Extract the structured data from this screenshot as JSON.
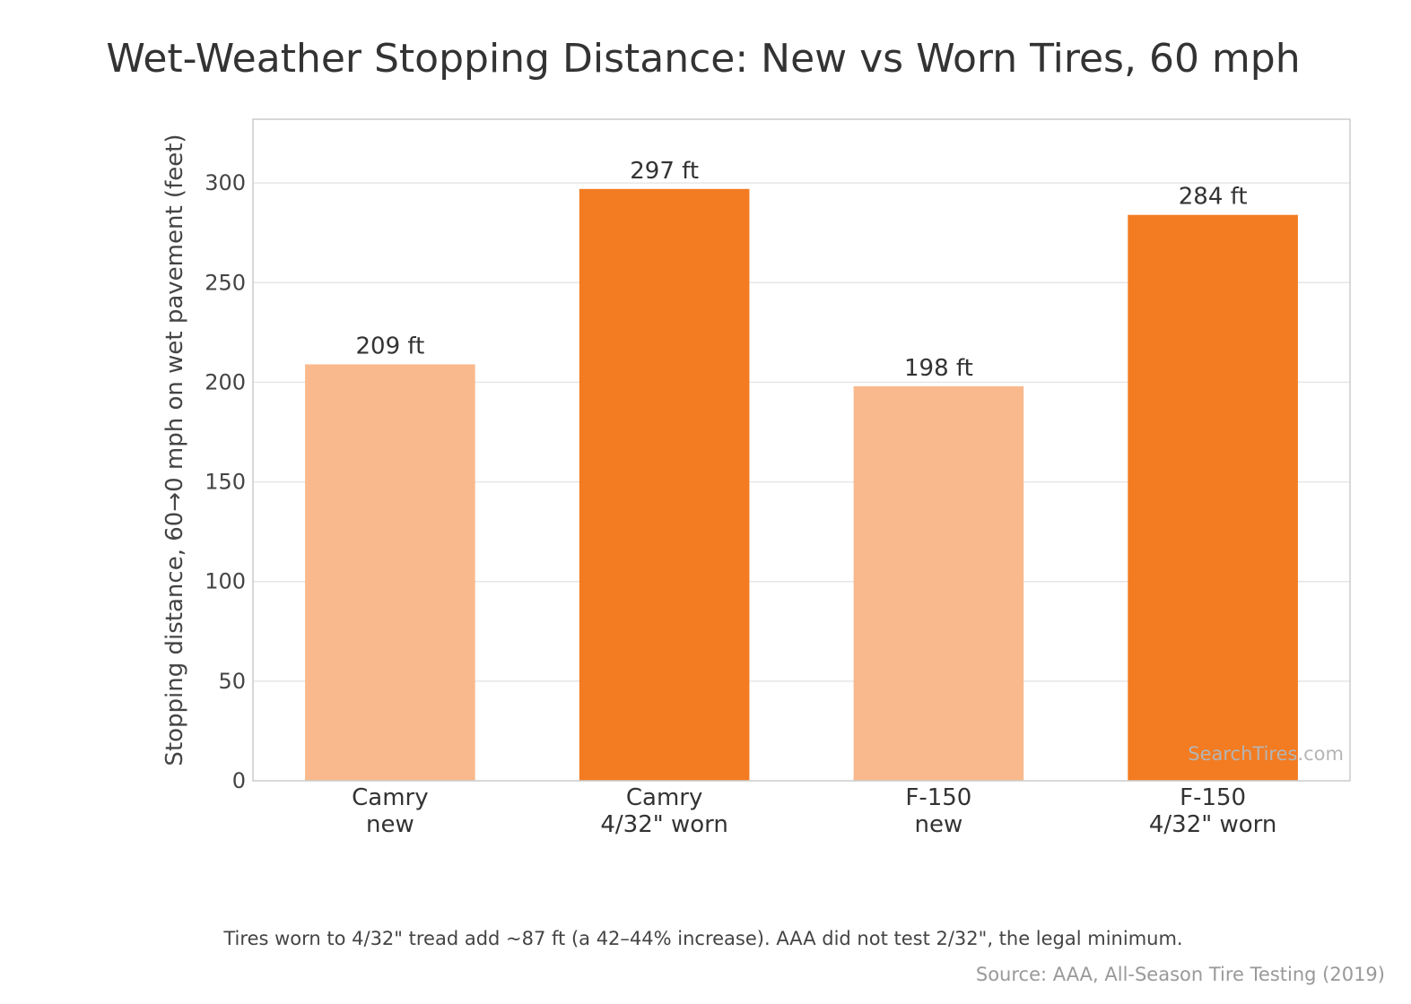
{
  "chart_data": {
    "type": "bar",
    "title": "Wet-Weather Stopping Distance: New vs Worn Tires, 60 mph",
    "xlabel": "",
    "ylabel": "Stopping distance, 60→0 mph on wet pavement (feet)",
    "categories": [
      [
        "Camry",
        "new"
      ],
      [
        "Camry",
        "4/32\" worn"
      ],
      [
        "F-150",
        "new"
      ],
      [
        "F-150",
        "4/32\" worn"
      ]
    ],
    "values": [
      209,
      297,
      198,
      284
    ],
    "value_labels": [
      "209 ft",
      "297 ft",
      "198 ft",
      "284 ft"
    ],
    "bar_colors": [
      "#f9b98c",
      "#f37b21",
      "#f9b98c",
      "#f37b21"
    ],
    "ylim": [
      0,
      332
    ],
    "yticks": [
      0,
      50,
      100,
      150,
      200,
      250,
      300
    ],
    "grid": true,
    "note": "Tires worn to 4/32\" tread add ~87 ft (a 42–44% increase). AAA did not test 2/32\", the legal minimum.",
    "source": "Source: AAA, All-Season Tire Testing (2019)",
    "watermark": "SearchTires.com"
  },
  "colors": {
    "new_tires": "#f9b98c",
    "worn_tires": "#f37b21",
    "grid": "#e6e6e6",
    "axes_frame": "#cccccc"
  }
}
